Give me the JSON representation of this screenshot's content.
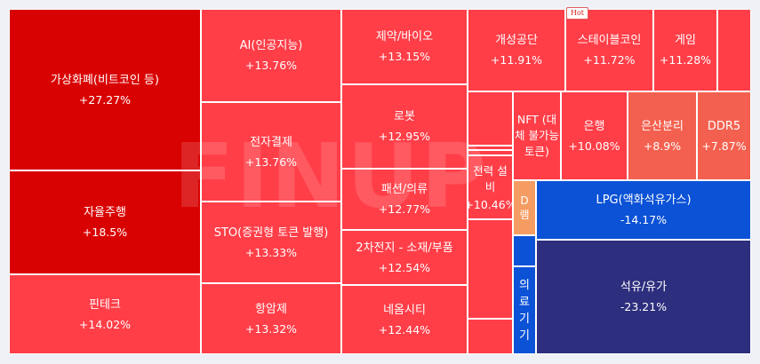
{
  "watermark": "FINUP",
  "hot_badge": "Hot",
  "colors": {
    "strong_red": "#d90202",
    "red": "#ff3e48",
    "salmon": "#f4604f",
    "blue": "#0b52d6",
    "navy": "#2e2e7e",
    "orange": "#f59c62"
  },
  "tiles": [
    {
      "name": "가상화폐(비트코인 등)",
      "change": "+27.27%",
      "percent": 27.27,
      "color": "#d90202"
    },
    {
      "name": "자율주행",
      "change": "+18.5%",
      "percent": 18.5,
      "color": "#d90202"
    },
    {
      "name": "핀테크",
      "change": "+14.02%",
      "percent": 14.02,
      "color": "#ff3e48"
    },
    {
      "name": "AI(인공지능)",
      "change": "+13.76%",
      "percent": 13.76,
      "color": "#ff3e48"
    },
    {
      "name": "전자결제",
      "change": "+13.76%",
      "percent": 13.76,
      "color": "#ff3e48"
    },
    {
      "name": "STO(증권형 토큰 발행)",
      "change": "+13.33%",
      "percent": 13.33,
      "color": "#ff3e48"
    },
    {
      "name": "항암제",
      "change": "+13.32%",
      "percent": 13.32,
      "color": "#ff3e48"
    },
    {
      "name": "제약/바이오",
      "change": "+13.15%",
      "percent": 13.15,
      "color": "#ff3e48"
    },
    {
      "name": "로봇",
      "change": "+12.95%",
      "percent": 12.95,
      "color": "#ff3e48"
    },
    {
      "name": "패션/의류",
      "change": "+12.77%",
      "percent": 12.77,
      "color": "#ff3e48"
    },
    {
      "name": "2차전지 - 소재/부품",
      "change": "+12.54%",
      "percent": 12.54,
      "color": "#ff3e48"
    },
    {
      "name": "네옴시티",
      "change": "+12.44%",
      "percent": 12.44,
      "color": "#ff3e48"
    },
    {
      "name": "개성공단",
      "change": "+11.91%",
      "percent": 11.91,
      "color": "#ff3e48"
    },
    {
      "name": "스테이블코인",
      "change": "+11.72%",
      "percent": 11.72,
      "color": "#ff3e48"
    },
    {
      "name": "게임",
      "change": "+11.28%",
      "percent": 11.28,
      "color": "#ff3e48"
    },
    {
      "name": "",
      "change": "",
      "color": "#ff3e48"
    },
    {
      "name": "NFT (대체 불가능 토큰)",
      "change": "",
      "color": "#ff3e48"
    },
    {
      "name": "은행",
      "change": "+10.08%",
      "percent": 10.08,
      "color": "#ff3e48"
    },
    {
      "name": "은산분리",
      "change": "+8.9%",
      "percent": 8.9,
      "color": "#f4604f"
    },
    {
      "name": "DDR5",
      "change": "+7.87%",
      "percent": 7.87,
      "color": "#f4604f"
    },
    {
      "name": "",
      "change": "",
      "color": "#ff3e48"
    },
    {
      "name": "",
      "change": "",
      "color": "#ff3e48"
    },
    {
      "name": "",
      "change": "",
      "color": "#ff3e48"
    },
    {
      "name": "전력 설비",
      "change": "+10.46%",
      "percent": 10.46,
      "color": "#ff3e48"
    },
    {
      "name": "",
      "change": "",
      "color": "#ff3e48"
    },
    {
      "name": "",
      "change": "",
      "color": "#ff3e48"
    },
    {
      "name": "D램",
      "change": "",
      "color": "#f59c62"
    },
    {
      "name": "LPG(액화석유가스)",
      "change": "-14.17%",
      "percent": -14.17,
      "color": "#0b52d6"
    },
    {
      "name": "",
      "change": "",
      "color": "#0b52d6"
    },
    {
      "name": "의료기기",
      "change": "",
      "color": "#0b52d6"
    },
    {
      "name": "석유/유가",
      "change": "-23.21%",
      "percent": -23.21,
      "color": "#2e2e7e"
    }
  ]
}
